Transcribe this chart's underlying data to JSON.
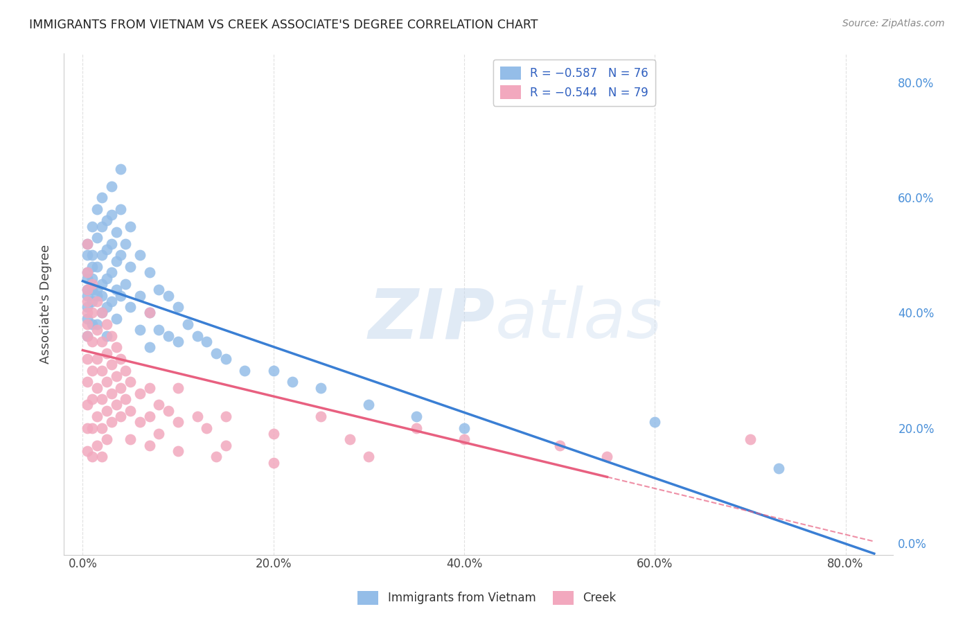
{
  "title": "IMMIGRANTS FROM VIETNAM VS CREEK ASSOCIATE'S DEGREE CORRELATION CHART",
  "source": "Source: ZipAtlas.com",
  "ylabel": "Associate's Degree",
  "watermark": "ZIPatlas",
  "legend_labels_bottom": [
    "Immigrants from Vietnam",
    "Creek"
  ],
  "blue_scatter_color": "#94bde8",
  "pink_scatter_color": "#f2a8be",
  "blue_line_color": "#3a7fd4",
  "pink_line_color": "#e86080",
  "grid_color": "#cccccc",
  "background_color": "#ffffff",
  "right_ytick_positions": [
    0.0,
    0.2,
    0.4,
    0.6,
    0.8
  ],
  "right_ytick_labels": [
    "0.0%",
    "20.0%",
    "40.0%",
    "60.0%",
    "80.0%"
  ],
  "xtick_positions": [
    0.0,
    0.2,
    0.4,
    0.6,
    0.8
  ],
  "xtick_labels": [
    "0.0%",
    "20.0%",
    "40.0%",
    "60.0%",
    "80.0%"
  ],
  "xlim": [
    -0.02,
    0.85
  ],
  "ylim": [
    -0.02,
    0.85
  ],
  "blue_intercept": 0.455,
  "blue_slope": -0.57,
  "pink_intercept": 0.335,
  "pink_slope": -0.4,
  "blue_points": [
    [
      0.005,
      0.5
    ],
    [
      0.005,
      0.47
    ],
    [
      0.005,
      0.52
    ],
    [
      0.005,
      0.44
    ],
    [
      0.005,
      0.41
    ],
    [
      0.005,
      0.43
    ],
    [
      0.005,
      0.46
    ],
    [
      0.005,
      0.39
    ],
    [
      0.005,
      0.36
    ],
    [
      0.01,
      0.55
    ],
    [
      0.01,
      0.5
    ],
    [
      0.01,
      0.46
    ],
    [
      0.01,
      0.42
    ],
    [
      0.01,
      0.38
    ],
    [
      0.01,
      0.44
    ],
    [
      0.01,
      0.48
    ],
    [
      0.015,
      0.58
    ],
    [
      0.015,
      0.53
    ],
    [
      0.015,
      0.48
    ],
    [
      0.015,
      0.43
    ],
    [
      0.015,
      0.38
    ],
    [
      0.015,
      0.44
    ],
    [
      0.02,
      0.6
    ],
    [
      0.02,
      0.55
    ],
    [
      0.02,
      0.5
    ],
    [
      0.02,
      0.45
    ],
    [
      0.02,
      0.4
    ],
    [
      0.02,
      0.43
    ],
    [
      0.025,
      0.56
    ],
    [
      0.025,
      0.51
    ],
    [
      0.025,
      0.46
    ],
    [
      0.025,
      0.41
    ],
    [
      0.025,
      0.36
    ],
    [
      0.03,
      0.62
    ],
    [
      0.03,
      0.57
    ],
    [
      0.03,
      0.52
    ],
    [
      0.03,
      0.47
    ],
    [
      0.03,
      0.42
    ],
    [
      0.035,
      0.54
    ],
    [
      0.035,
      0.49
    ],
    [
      0.035,
      0.44
    ],
    [
      0.035,
      0.39
    ],
    [
      0.04,
      0.65
    ],
    [
      0.04,
      0.58
    ],
    [
      0.04,
      0.5
    ],
    [
      0.04,
      0.43
    ],
    [
      0.045,
      0.52
    ],
    [
      0.045,
      0.45
    ],
    [
      0.05,
      0.55
    ],
    [
      0.05,
      0.48
    ],
    [
      0.05,
      0.41
    ],
    [
      0.06,
      0.5
    ],
    [
      0.06,
      0.43
    ],
    [
      0.06,
      0.37
    ],
    [
      0.07,
      0.47
    ],
    [
      0.07,
      0.4
    ],
    [
      0.07,
      0.34
    ],
    [
      0.08,
      0.44
    ],
    [
      0.08,
      0.37
    ],
    [
      0.09,
      0.43
    ],
    [
      0.09,
      0.36
    ],
    [
      0.1,
      0.41
    ],
    [
      0.1,
      0.35
    ],
    [
      0.11,
      0.38
    ],
    [
      0.12,
      0.36
    ],
    [
      0.13,
      0.35
    ],
    [
      0.14,
      0.33
    ],
    [
      0.15,
      0.32
    ],
    [
      0.17,
      0.3
    ],
    [
      0.2,
      0.3
    ],
    [
      0.22,
      0.28
    ],
    [
      0.25,
      0.27
    ],
    [
      0.3,
      0.24
    ],
    [
      0.35,
      0.22
    ],
    [
      0.4,
      0.2
    ],
    [
      0.6,
      0.21
    ],
    [
      0.73,
      0.13
    ]
  ],
  "pink_points": [
    [
      0.005,
      0.52
    ],
    [
      0.005,
      0.47
    ],
    [
      0.005,
      0.44
    ],
    [
      0.005,
      0.4
    ],
    [
      0.005,
      0.36
    ],
    [
      0.005,
      0.32
    ],
    [
      0.005,
      0.28
    ],
    [
      0.005,
      0.24
    ],
    [
      0.005,
      0.2
    ],
    [
      0.005,
      0.16
    ],
    [
      0.005,
      0.38
    ],
    [
      0.005,
      0.42
    ],
    [
      0.01,
      0.45
    ],
    [
      0.01,
      0.4
    ],
    [
      0.01,
      0.35
    ],
    [
      0.01,
      0.3
    ],
    [
      0.01,
      0.25
    ],
    [
      0.01,
      0.2
    ],
    [
      0.01,
      0.15
    ],
    [
      0.015,
      0.42
    ],
    [
      0.015,
      0.37
    ],
    [
      0.015,
      0.32
    ],
    [
      0.015,
      0.27
    ],
    [
      0.015,
      0.22
    ],
    [
      0.015,
      0.17
    ],
    [
      0.02,
      0.4
    ],
    [
      0.02,
      0.35
    ],
    [
      0.02,
      0.3
    ],
    [
      0.02,
      0.25
    ],
    [
      0.02,
      0.2
    ],
    [
      0.02,
      0.15
    ],
    [
      0.025,
      0.38
    ],
    [
      0.025,
      0.33
    ],
    [
      0.025,
      0.28
    ],
    [
      0.025,
      0.23
    ],
    [
      0.025,
      0.18
    ],
    [
      0.03,
      0.36
    ],
    [
      0.03,
      0.31
    ],
    [
      0.03,
      0.26
    ],
    [
      0.03,
      0.21
    ],
    [
      0.035,
      0.34
    ],
    [
      0.035,
      0.29
    ],
    [
      0.035,
      0.24
    ],
    [
      0.04,
      0.32
    ],
    [
      0.04,
      0.27
    ],
    [
      0.04,
      0.22
    ],
    [
      0.045,
      0.3
    ],
    [
      0.045,
      0.25
    ],
    [
      0.05,
      0.28
    ],
    [
      0.05,
      0.23
    ],
    [
      0.05,
      0.18
    ],
    [
      0.06,
      0.26
    ],
    [
      0.06,
      0.21
    ],
    [
      0.07,
      0.4
    ],
    [
      0.07,
      0.27
    ],
    [
      0.07,
      0.22
    ],
    [
      0.07,
      0.17
    ],
    [
      0.08,
      0.24
    ],
    [
      0.08,
      0.19
    ],
    [
      0.09,
      0.23
    ],
    [
      0.1,
      0.27
    ],
    [
      0.1,
      0.21
    ],
    [
      0.1,
      0.16
    ],
    [
      0.12,
      0.22
    ],
    [
      0.13,
      0.2
    ],
    [
      0.14,
      0.15
    ],
    [
      0.15,
      0.22
    ],
    [
      0.15,
      0.17
    ],
    [
      0.2,
      0.19
    ],
    [
      0.2,
      0.14
    ],
    [
      0.25,
      0.22
    ],
    [
      0.28,
      0.18
    ],
    [
      0.3,
      0.15
    ],
    [
      0.35,
      0.2
    ],
    [
      0.4,
      0.18
    ],
    [
      0.5,
      0.17
    ],
    [
      0.55,
      0.15
    ],
    [
      0.7,
      0.18
    ]
  ]
}
